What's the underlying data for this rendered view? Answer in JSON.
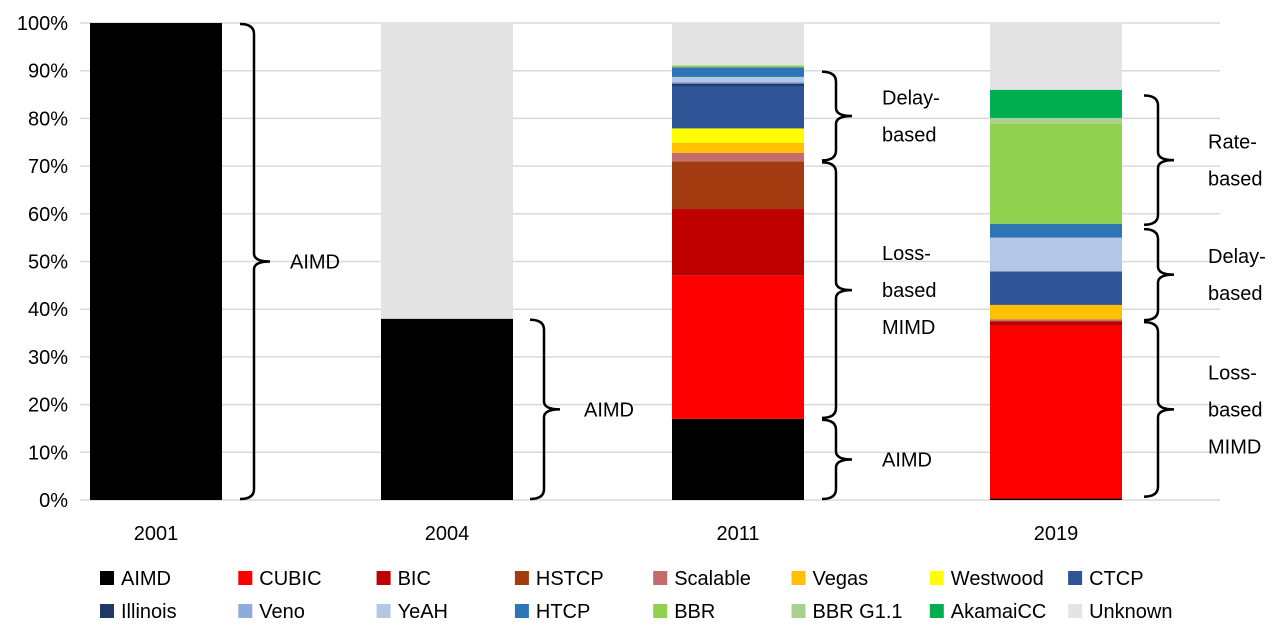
{
  "chart_data": {
    "type": "bar",
    "stacked": true,
    "title": "",
    "xlabel": "",
    "ylabel": "",
    "ylim": [
      0,
      100
    ],
    "y_tick_format": "percent",
    "y_ticks": [
      "0%",
      "10%",
      "20%",
      "30%",
      "40%",
      "50%",
      "60%",
      "70%",
      "80%",
      "90%",
      "100%"
    ],
    "grid": true,
    "legend_placement": "bottom",
    "categories": [
      "2001",
      "2004",
      "2011",
      "2019"
    ],
    "series": [
      {
        "name": "AIMD",
        "color": "#000000",
        "values": [
          100,
          38,
          17,
          0.3
        ]
      },
      {
        "name": "CUBIC",
        "color": "#ff0000",
        "values": [
          0,
          0,
          30,
          36.2
        ]
      },
      {
        "name": "BIC",
        "color": "#c00000",
        "values": [
          0,
          0,
          14,
          0.9
        ]
      },
      {
        "name": "HSTCP",
        "color": "#a33b11",
        "values": [
          0,
          0,
          10,
          0.2
        ]
      },
      {
        "name": "Scalable",
        "color": "#c46b6b",
        "values": [
          0,
          0,
          1.8,
          0.3
        ]
      },
      {
        "name": "Vegas",
        "color": "#ffc000",
        "values": [
          0,
          0,
          2.1,
          3
        ]
      },
      {
        "name": "Westwood",
        "color": "#ffff00",
        "values": [
          0,
          0,
          3,
          0
        ]
      },
      {
        "name": "CTCP",
        "color": "#2f5597",
        "values": [
          0,
          0,
          8.9,
          7
        ]
      },
      {
        "name": "Illinois",
        "color": "#1f3864",
        "values": [
          0,
          0,
          0.5,
          0
        ]
      },
      {
        "name": "Veno",
        "color": "#8faadc",
        "values": [
          0,
          0,
          0.4,
          0
        ]
      },
      {
        "name": "YeAH",
        "color": "#b4c7e7",
        "values": [
          0,
          0,
          1,
          7.1
        ]
      },
      {
        "name": "HTCP",
        "color": "#2e75b6",
        "values": [
          0,
          0,
          2,
          2.9
        ]
      },
      {
        "name": "BBR",
        "color": "#92d050",
        "values": [
          0,
          0,
          0.4,
          21
        ]
      },
      {
        "name": "BBR G1.1",
        "color": "#a9d18e",
        "values": [
          0,
          0,
          0,
          1.2
        ]
      },
      {
        "name": "AkamaiCC",
        "color": "#00b050",
        "values": [
          0,
          0,
          0,
          5.9
        ]
      },
      {
        "name": "Unknown",
        "color": "#e4e4e4",
        "values": [
          0,
          62,
          9,
          14
        ]
      }
    ],
    "annotations": [
      {
        "category": "2001",
        "range": [
          0,
          100
        ],
        "label": [
          "AIMD"
        ]
      },
      {
        "category": "2004",
        "range": [
          0,
          38
        ],
        "label": [
          "AIMD"
        ]
      },
      {
        "category": "2011",
        "range": [
          71,
          90
        ],
        "label": [
          "Delay-",
          "based"
        ]
      },
      {
        "category": "2011",
        "range": [
          17,
          71
        ],
        "label": [
          "Loss-",
          "based",
          "MIMD"
        ]
      },
      {
        "category": "2011",
        "range": [
          0,
          17
        ],
        "label": [
          "AIMD"
        ]
      },
      {
        "category": "2019",
        "range": [
          57.5,
          85
        ],
        "label": [
          "Rate-",
          "based"
        ]
      },
      {
        "category": "2019",
        "range": [
          37.5,
          57
        ],
        "label": [
          "Delay-",
          "based"
        ]
      },
      {
        "category": "2019",
        "range": [
          0.5,
          37.5
        ],
        "label": [
          "Loss-",
          "based",
          "MIMD"
        ]
      }
    ]
  }
}
